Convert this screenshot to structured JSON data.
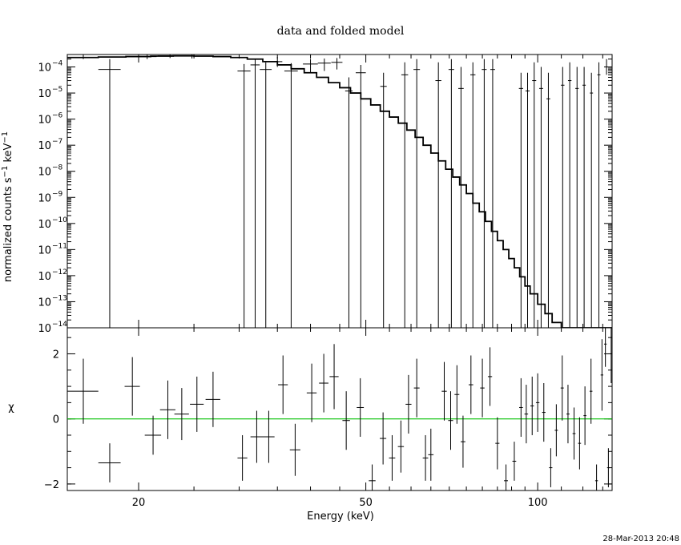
{
  "chart_data": [
    {
      "type": "line",
      "panel": "spectrum",
      "title": "data and folded model",
      "ylabel": "normalized counts s$^{-1}$ keV$^{-1}$",
      "y_scale": "log",
      "xlim": [
        15,
        135
      ],
      "ylim": [
        1e-14,
        0.0003
      ],
      "x_scale": "log",
      "y_ticks": [
        {
          "value": 0.0001,
          "label": "10",
          "exp": "−4"
        },
        {
          "value": 1e-05,
          "label": "10",
          "exp": "−5"
        },
        {
          "value": 1e-06,
          "label": "10",
          "exp": "−6"
        },
        {
          "value": 1e-07,
          "label": "10",
          "exp": "−7"
        },
        {
          "value": 1e-08,
          "label": "10",
          "exp": "−8"
        },
        {
          "value": 1e-09,
          "label": "10",
          "exp": "−9"
        },
        {
          "value": 1e-10,
          "label": "10",
          "exp": "−10"
        },
        {
          "value": 1e-11,
          "label": "10",
          "exp": "−11"
        },
        {
          "value": 1e-12,
          "label": "10",
          "exp": "−12"
        },
        {
          "value": 1e-13,
          "label": "10",
          "exp": "−13"
        },
        {
          "value": 1e-14,
          "label": "10",
          "exp": "−14"
        }
      ],
      "series": [
        {
          "kind": "data",
          "points": [
            {
              "x": 16,
              "x_lo": 15,
              "x_hi": 17,
              "y": 0.0003,
              "y_lo": 0.0002,
              "y_hi": 0.0003
            },
            {
              "x": 17.8,
              "x_lo": 17,
              "x_hi": 18.6,
              "y": 8e-05,
              "y_lo": 1e-14,
              "y_hi": 0.0002
            },
            {
              "x": 20.7,
              "x_lo": 19.9,
              "x_hi": 21.5,
              "y": 0.00025,
              "y_lo": 0.0002,
              "y_hi": 0.0003
            },
            {
              "x": 22.7,
              "x_lo": 21.6,
              "x_hi": 23.8,
              "y": 0.00027,
              "y_lo": 0.00022,
              "y_hi": 0.0003
            },
            {
              "x": 24.8,
              "x_lo": 24.0,
              "x_hi": 25.6,
              "y": 0.00026,
              "y_lo": 0.00021,
              "y_hi": 0.0003
            },
            {
              "x": 30.6,
              "x_lo": 29.8,
              "x_hi": 31.4,
              "y": 7e-05,
              "y_lo": 1e-14,
              "y_hi": 0.00013
            },
            {
              "x": 32.0,
              "x_lo": 31.4,
              "x_hi": 32.6,
              "y": 0.00012,
              "y_lo": 1e-14,
              "y_hi": 0.0002
            },
            {
              "x": 33.4,
              "x_lo": 32.6,
              "x_hi": 34.2,
              "y": 8e-05,
              "y_lo": 1e-14,
              "y_hi": 0.00015
            },
            {
              "x": 35.0,
              "x_lo": 34.3,
              "x_hi": 35.7,
              "y": 0.00016,
              "y_lo": 0.0001,
              "y_hi": 0.00024
            },
            {
              "x": 37.0,
              "x_lo": 36.0,
              "x_hi": 38.0,
              "y": 7e-05,
              "y_lo": 1e-14,
              "y_hi": 0.00014
            },
            {
              "x": 40.0,
              "x_lo": 38.8,
              "x_hi": 41.2,
              "y": 0.00013,
              "y_lo": 6e-05,
              "y_hi": 0.0002
            },
            {
              "x": 42.3,
              "x_lo": 41.2,
              "x_hi": 43.4,
              "y": 0.00014,
              "y_lo": 7e-05,
              "y_hi": 0.00021
            },
            {
              "x": 44.5,
              "x_lo": 43.5,
              "x_hi": 45.5,
              "y": 0.00015,
              "y_lo": 8e-05,
              "y_hi": 0.00022
            },
            {
              "x": 46.7,
              "x_lo": 46.0,
              "x_hi": 47.4,
              "y": 1.2e-05,
              "y_lo": 1e-14,
              "y_hi": 4e-05
            },
            {
              "x": 49.0,
              "x_lo": 48.0,
              "x_hi": 50.0,
              "y": 6e-05,
              "y_lo": 1e-14,
              "y_hi": 0.00012
            },
            {
              "x": 53.7,
              "x_lo": 53.0,
              "x_hi": 54.4,
              "y": 1.8e-05,
              "y_lo": 1e-14,
              "y_hi": 6e-05
            },
            {
              "x": 58.5,
              "x_lo": 57.7,
              "x_hi": 59.3,
              "y": 5e-05,
              "y_lo": 1e-14,
              "y_hi": 0.00015
            },
            {
              "x": 61.4,
              "x_lo": 60.6,
              "x_hi": 62.2,
              "y": 8e-05,
              "y_lo": 1e-14,
              "y_hi": 0.0002
            },
            {
              "x": 67.0,
              "x_lo": 66.2,
              "x_hi": 67.8,
              "y": 3e-05,
              "y_lo": 1e-14,
              "y_hi": 0.00015
            },
            {
              "x": 70.6,
              "x_lo": 69.8,
              "x_hi": 71.4,
              "y": 8e-05,
              "y_lo": 1e-14,
              "y_hi": 0.0002
            },
            {
              "x": 73.4,
              "x_lo": 72.6,
              "x_hi": 74.2,
              "y": 1.5e-05,
              "y_lo": 1e-14,
              "y_hi": 0.0001
            },
            {
              "x": 77.0,
              "x_lo": 76.2,
              "x_hi": 77.8,
              "y": 5e-05,
              "y_lo": 1e-14,
              "y_hi": 0.00015
            },
            {
              "x": 80.6,
              "x_lo": 79.8,
              "x_hi": 81.4,
              "y": 8e-05,
              "y_lo": 1e-14,
              "y_hi": 0.0002
            },
            {
              "x": 83.4,
              "x_lo": 82.6,
              "x_hi": 84.2,
              "y": 8e-05,
              "y_lo": 1e-14,
              "y_hi": 0.0002
            },
            {
              "x": 93.5,
              "x_lo": 92.7,
              "x_hi": 94.3,
              "y": 1.5e-05,
              "y_lo": 1e-14,
              "y_hi": 6e-05
            },
            {
              "x": 96.0,
              "x_lo": 95.2,
              "x_hi": 96.8,
              "y": 1.2e-05,
              "y_lo": 1e-14,
              "y_hi": 6e-05
            },
            {
              "x": 98.6,
              "x_lo": 97.8,
              "x_hi": 99.4,
              "y": 3e-05,
              "y_lo": 1e-14,
              "y_hi": 0.00015
            },
            {
              "x": 101.4,
              "x_lo": 100.6,
              "x_hi": 102.2,
              "y": 1.5e-05,
              "y_lo": 1e-14,
              "y_hi": 0.0001
            },
            {
              "x": 104.4,
              "x_lo": 103.6,
              "x_hi": 105.2,
              "y": 6e-06,
              "y_lo": 1e-14,
              "y_hi": 6e-05
            },
            {
              "x": 110.6,
              "x_lo": 109.8,
              "x_hi": 111.4,
              "y": 2e-05,
              "y_lo": 1e-14,
              "y_hi": 0.0001
            },
            {
              "x": 113.8,
              "x_lo": 113.0,
              "x_hi": 114.6,
              "y": 3e-05,
              "y_lo": 1e-14,
              "y_hi": 0.00015
            },
            {
              "x": 117.2,
              "x_lo": 116.4,
              "x_hi": 118.0,
              "y": 1.5e-05,
              "y_lo": 1e-14,
              "y_hi": 0.0001
            },
            {
              "x": 120.6,
              "x_lo": 119.8,
              "x_hi": 121.4,
              "y": 2e-05,
              "y_lo": 1e-14,
              "y_hi": 0.0001
            },
            {
              "x": 124.2,
              "x_lo": 123.4,
              "x_hi": 125.0,
              "y": 1e-05,
              "y_lo": 1e-14,
              "y_hi": 6e-05
            },
            {
              "x": 128.0,
              "x_lo": 127.2,
              "x_hi": 128.8,
              "y": 5e-05,
              "y_lo": 1e-14,
              "y_hi": 0.00015
            },
            {
              "x": 132.0,
              "x_lo": 131.2,
              "x_hi": 132.8,
              "y": 0.0001,
              "y_lo": 5e-05,
              "y_hi": 0.0002
            }
          ]
        },
        {
          "kind": "model",
          "steps": [
            [
              15.0,
              0.00023
            ],
            [
              17.0,
              0.00024
            ],
            [
              19.0,
              0.00025
            ],
            [
              21.0,
              0.00026
            ],
            [
              23.0,
              0.000265
            ],
            [
              25.0,
              0.00026
            ],
            [
              27.0,
              0.00025
            ],
            [
              29.0,
              0.00023
            ],
            [
              31.0,
              0.0002
            ],
            [
              33.0,
              0.00016
            ],
            [
              35.0,
              0.00012
            ],
            [
              37.0,
              8.5e-05
            ],
            [
              39.0,
              6e-05
            ],
            [
              41.0,
              4e-05
            ],
            [
              43.0,
              2.5e-05
            ],
            [
              45.0,
              1.6e-05
            ],
            [
              47.0,
              1e-05
            ],
            [
              49.0,
              6e-06
            ],
            [
              51.0,
              3.5e-06
            ],
            [
              53.0,
              2e-06
            ],
            [
              55.0,
              1.2e-06
            ],
            [
              57.0,
              7e-07
            ],
            [
              59.0,
              3.8e-07
            ],
            [
              61.0,
              2e-07
            ],
            [
              63.0,
              1e-07
            ],
            [
              65.0,
              5e-08
            ],
            [
              67.0,
              2.5e-08
            ],
            [
              69.0,
              1.2e-08
            ],
            [
              71.0,
              6e-09
            ],
            [
              73.0,
              3e-09
            ],
            [
              75.0,
              1.4e-09
            ],
            [
              77.0,
              6e-10
            ],
            [
              79.0,
              2.8e-10
            ],
            [
              81.0,
              1.2e-10
            ],
            [
              83.0,
              5e-11
            ],
            [
              85.0,
              2.2e-11
            ],
            [
              87.0,
              1e-11
            ],
            [
              89.0,
              4.5e-12
            ],
            [
              91.0,
              2e-12
            ],
            [
              93.0,
              9e-13
            ],
            [
              95.0,
              4e-13
            ],
            [
              97.0,
              2e-13
            ],
            [
              100.0,
              8e-14
            ],
            [
              103.0,
              3.5e-14
            ],
            [
              106.0,
              1.6e-14
            ],
            [
              110.0,
              1e-14
            ],
            [
              135.0,
              1e-14
            ]
          ]
        }
      ]
    },
    {
      "type": "scatter",
      "panel": "residuals",
      "ylabel": "χ",
      "xlabel": "Energy (keV)",
      "x_scale": "log",
      "xlim": [
        15,
        135
      ],
      "ylim": [
        -2.2,
        2.8
      ],
      "x_ticks": [
        {
          "value": 20,
          "label": "20"
        },
        {
          "value": 50,
          "label": "50"
        },
        {
          "value": 100,
          "label": "100"
        }
      ],
      "y_ticks": [
        {
          "value": 2,
          "label": "2"
        },
        {
          "value": 0,
          "label": "0"
        },
        {
          "value": -2,
          "label": "−2"
        }
      ],
      "zero_line_color": "#00c000",
      "points": [
        {
          "x": 16.0,
          "x_lo": 15.0,
          "x_hi": 17.0,
          "y": 0.85,
          "err": 1.0
        },
        {
          "x": 17.8,
          "x_lo": 17.0,
          "x_hi": 18.6,
          "y": -1.35,
          "err": 0.6
        },
        {
          "x": 19.5,
          "x_lo": 18.9,
          "x_hi": 20.1,
          "y": 1.0,
          "err": 0.9
        },
        {
          "x": 21.2,
          "x_lo": 20.5,
          "x_hi": 21.9,
          "y": -0.5,
          "err": 0.6
        },
        {
          "x": 22.5,
          "x_lo": 21.8,
          "x_hi": 23.2,
          "y": 0.28,
          "err": 0.9
        },
        {
          "x": 23.8,
          "x_lo": 23.1,
          "x_hi": 24.5,
          "y": 0.15,
          "err": 0.8
        },
        {
          "x": 25.3,
          "x_lo": 24.6,
          "x_hi": 26.0,
          "y": 0.45,
          "err": 0.85
        },
        {
          "x": 27.0,
          "x_lo": 26.2,
          "x_hi": 27.8,
          "y": 0.6,
          "err": 0.85
        },
        {
          "x": 30.4,
          "x_lo": 29.8,
          "x_hi": 31.0,
          "y": -1.2,
          "err": 0.7
        },
        {
          "x": 32.2,
          "x_lo": 31.4,
          "x_hi": 33.0,
          "y": -0.55,
          "err": 0.8
        },
        {
          "x": 33.8,
          "x_lo": 33.0,
          "x_hi": 34.6,
          "y": -0.55,
          "err": 0.8
        },
        {
          "x": 35.8,
          "x_lo": 35.1,
          "x_hi": 36.5,
          "y": 1.05,
          "err": 0.9
        },
        {
          "x": 37.6,
          "x_lo": 36.8,
          "x_hi": 38.4,
          "y": -0.95,
          "err": 0.8
        },
        {
          "x": 40.2,
          "x_lo": 39.4,
          "x_hi": 41.0,
          "y": 0.8,
          "err": 0.9
        },
        {
          "x": 42.2,
          "x_lo": 41.4,
          "x_hi": 43.0,
          "y": 1.1,
          "err": 0.9
        },
        {
          "x": 44.0,
          "x_lo": 43.2,
          "x_hi": 44.8,
          "y": 1.3,
          "err": 1.0
        },
        {
          "x": 46.2,
          "x_lo": 45.5,
          "x_hi": 46.9,
          "y": -0.05,
          "err": 0.9
        },
        {
          "x": 48.9,
          "x_lo": 48.2,
          "x_hi": 49.6,
          "y": 0.35,
          "err": 0.9
        },
        {
          "x": 51.3,
          "x_lo": 50.6,
          "x_hi": 52.0,
          "y": -1.9,
          "err": 0.5
        },
        {
          "x": 53.6,
          "x_lo": 52.9,
          "x_hi": 54.3,
          "y": -0.6,
          "err": 0.8
        },
        {
          "x": 55.6,
          "x_lo": 54.9,
          "x_hi": 56.3,
          "y": -1.2,
          "err": 0.7
        },
        {
          "x": 57.6,
          "x_lo": 56.9,
          "x_hi": 58.3,
          "y": -0.85,
          "err": 0.8
        },
        {
          "x": 59.4,
          "x_lo": 58.7,
          "x_hi": 60.1,
          "y": 0.45,
          "err": 0.9
        },
        {
          "x": 61.4,
          "x_lo": 60.7,
          "x_hi": 62.1,
          "y": 0.95,
          "err": 0.9
        },
        {
          "x": 63.6,
          "x_lo": 62.9,
          "x_hi": 64.3,
          "y": -1.2,
          "err": 0.7
        },
        {
          "x": 65.0,
          "x_lo": 64.3,
          "x_hi": 65.7,
          "y": -1.1,
          "err": 0.8
        },
        {
          "x": 68.6,
          "x_lo": 67.9,
          "x_hi": 69.3,
          "y": 0.85,
          "err": 0.9
        },
        {
          "x": 70.4,
          "x_lo": 69.7,
          "x_hi": 71.1,
          "y": -0.05,
          "err": 0.9
        },
        {
          "x": 72.2,
          "x_lo": 71.5,
          "x_hi": 72.9,
          "y": 0.75,
          "err": 0.9
        },
        {
          "x": 74.0,
          "x_lo": 73.3,
          "x_hi": 74.7,
          "y": -0.7,
          "err": 0.8
        },
        {
          "x": 76.4,
          "x_lo": 75.7,
          "x_hi": 77.1,
          "y": 1.05,
          "err": 0.9
        },
        {
          "x": 80.0,
          "x_lo": 79.3,
          "x_hi": 80.7,
          "y": 0.95,
          "err": 0.9
        },
        {
          "x": 82.5,
          "x_lo": 81.8,
          "x_hi": 83.2,
          "y": 1.3,
          "err": 0.9
        },
        {
          "x": 85.0,
          "x_lo": 84.3,
          "x_hi": 85.7,
          "y": -0.75,
          "err": 0.8
        },
        {
          "x": 88.0,
          "x_lo": 87.3,
          "x_hi": 88.7,
          "y": -1.9,
          "err": 0.5
        },
        {
          "x": 91.0,
          "x_lo": 90.3,
          "x_hi": 91.7,
          "y": -1.3,
          "err": 0.6
        },
        {
          "x": 93.5,
          "x_lo": 92.8,
          "x_hi": 94.2,
          "y": 0.35,
          "err": 0.9
        },
        {
          "x": 95.5,
          "x_lo": 94.8,
          "x_hi": 96.2,
          "y": 0.15,
          "err": 0.9
        },
        {
          "x": 97.8,
          "x_lo": 97.1,
          "x_hi": 98.5,
          "y": 0.4,
          "err": 0.9
        },
        {
          "x": 100.0,
          "x_lo": 99.3,
          "x_hi": 100.7,
          "y": 0.5,
          "err": 0.9
        },
        {
          "x": 102.5,
          "x_lo": 101.8,
          "x_hi": 103.2,
          "y": 0.2,
          "err": 0.9
        },
        {
          "x": 105.4,
          "x_lo": 104.7,
          "x_hi": 106.1,
          "y": -1.5,
          "err": 0.6
        },
        {
          "x": 107.8,
          "x_lo": 107.1,
          "x_hi": 108.5,
          "y": -0.35,
          "err": 0.8
        },
        {
          "x": 110.4,
          "x_lo": 109.7,
          "x_hi": 111.1,
          "y": 0.95,
          "err": 1.0
        },
        {
          "x": 113.0,
          "x_lo": 112.3,
          "x_hi": 113.7,
          "y": 0.15,
          "err": 0.9
        },
        {
          "x": 115.8,
          "x_lo": 115.1,
          "x_hi": 116.5,
          "y": -0.45,
          "err": 0.8
        },
        {
          "x": 118.4,
          "x_lo": 117.7,
          "x_hi": 119.1,
          "y": -0.75,
          "err": 0.8
        },
        {
          "x": 121.0,
          "x_lo": 120.3,
          "x_hi": 121.7,
          "y": 0.1,
          "err": 0.9
        },
        {
          "x": 124.0,
          "x_lo": 123.3,
          "x_hi": 124.7,
          "y": 0.85,
          "err": 1.0
        },
        {
          "x": 126.8,
          "x_lo": 126.1,
          "x_hi": 127.5,
          "y": -1.9,
          "err": 0.5
        },
        {
          "x": 129.6,
          "x_lo": 128.9,
          "x_hi": 130.3,
          "y": 1.35,
          "err": 1.1
        },
        {
          "x": 131.4,
          "x_lo": 130.7,
          "x_hi": 132.1,
          "y": 2.3,
          "err": 0.7
        },
        {
          "x": 133.0,
          "x_lo": 132.3,
          "x_hi": 133.7,
          "y": -1.5,
          "err": 0.6
        },
        {
          "x": 134.5,
          "x_lo": 134.0,
          "x_hi": 135.0,
          "y": 2.0,
          "err": 0.9
        }
      ]
    }
  ],
  "timestamp": "28-Mar-2013 20:48"
}
